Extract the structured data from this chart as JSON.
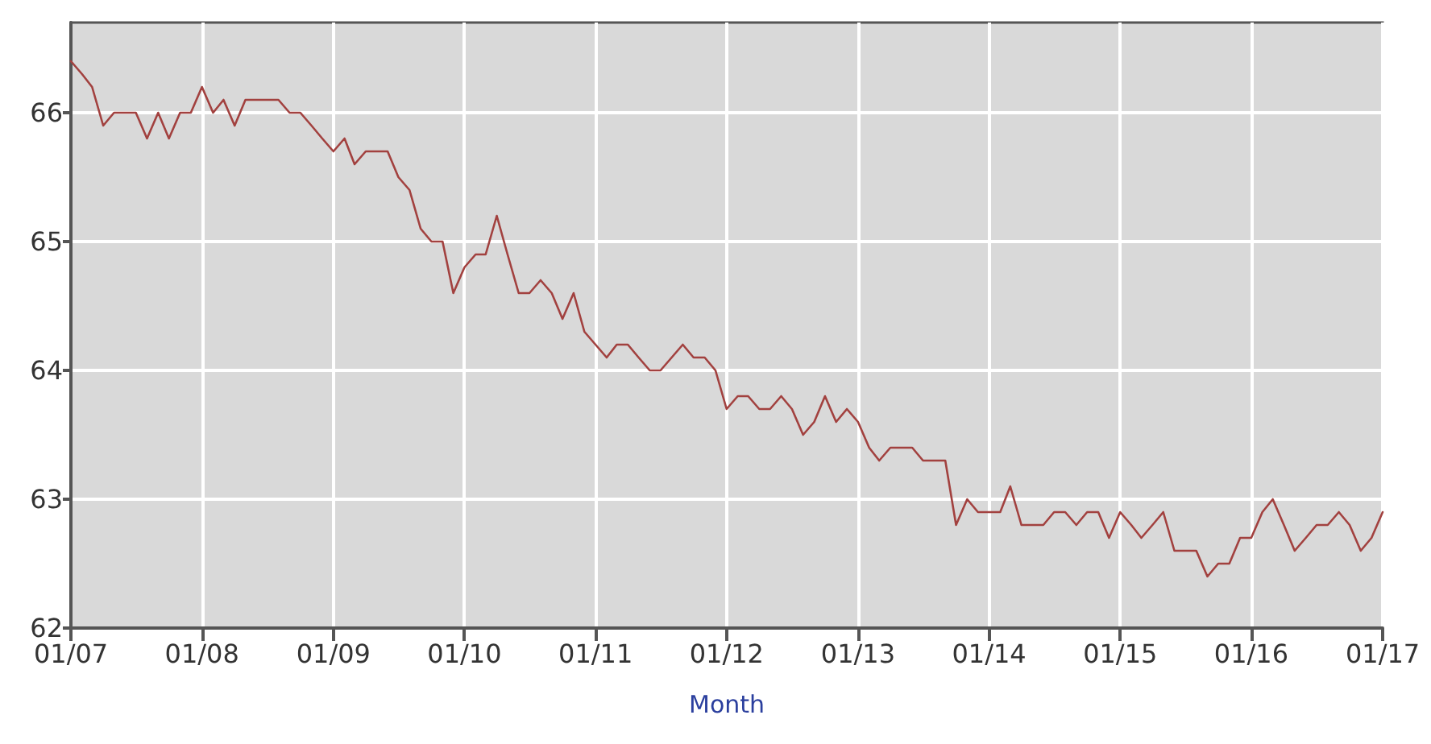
{
  "chart_data": {
    "type": "line",
    "xlabel": "Month",
    "x": [
      "2007-01",
      "2007-02",
      "2007-03",
      "2007-04",
      "2007-05",
      "2007-06",
      "2007-07",
      "2007-08",
      "2007-09",
      "2007-10",
      "2007-11",
      "2007-12",
      "2008-01",
      "2008-02",
      "2008-03",
      "2008-04",
      "2008-05",
      "2008-06",
      "2008-07",
      "2008-08",
      "2008-09",
      "2008-10",
      "2008-11",
      "2008-12",
      "2009-01",
      "2009-02",
      "2009-03",
      "2009-04",
      "2009-05",
      "2009-06",
      "2009-07",
      "2009-08",
      "2009-09",
      "2009-10",
      "2009-11",
      "2009-12",
      "2010-01",
      "2010-02",
      "2010-03",
      "2010-04",
      "2010-05",
      "2010-06",
      "2010-07",
      "2010-08",
      "2010-09",
      "2010-10",
      "2010-11",
      "2010-12",
      "2011-01",
      "2011-02",
      "2011-03",
      "2011-04",
      "2011-05",
      "2011-06",
      "2011-07",
      "2011-08",
      "2011-09",
      "2011-10",
      "2011-11",
      "2011-12",
      "2012-01",
      "2012-02",
      "2012-03",
      "2012-04",
      "2012-05",
      "2012-06",
      "2012-07",
      "2012-08",
      "2012-09",
      "2012-10",
      "2012-11",
      "2012-12",
      "2013-01",
      "2013-02",
      "2013-03",
      "2013-04",
      "2013-05",
      "2013-06",
      "2013-07",
      "2013-08",
      "2013-09",
      "2013-10",
      "2013-11",
      "2013-12",
      "2014-01",
      "2014-02",
      "2014-03",
      "2014-04",
      "2014-05",
      "2014-06",
      "2014-07",
      "2014-08",
      "2014-09",
      "2014-10",
      "2014-11",
      "2014-12",
      "2015-01",
      "2015-02",
      "2015-03",
      "2015-04",
      "2015-05",
      "2015-06",
      "2015-07",
      "2015-08",
      "2015-09",
      "2015-10",
      "2015-11",
      "2015-12",
      "2016-01",
      "2016-02",
      "2016-03",
      "2016-04",
      "2016-05",
      "2016-06",
      "2016-07",
      "2016-08",
      "2016-09",
      "2016-10",
      "2016-11",
      "2016-12",
      "2017-01"
    ],
    "series": [
      {
        "color": "#a2413f",
        "values": [
          66.4,
          66.3,
          66.2,
          65.9,
          66.0,
          66.0,
          66.0,
          65.8,
          66.0,
          65.8,
          66.0,
          66.0,
          66.2,
          66.0,
          66.1,
          65.9,
          66.1,
          66.1,
          66.1,
          66.1,
          66.0,
          66.0,
          65.9,
          65.8,
          65.7,
          65.8,
          65.6,
          65.7,
          65.7,
          65.7,
          65.5,
          65.4,
          65.1,
          65.0,
          65.0,
          64.6,
          64.8,
          64.9,
          64.9,
          65.2,
          64.9,
          64.6,
          64.6,
          64.7,
          64.6,
          64.4,
          64.6,
          64.3,
          64.2,
          64.1,
          64.2,
          64.2,
          64.1,
          64.0,
          64.0,
          64.1,
          64.2,
          64.1,
          64.1,
          64.0,
          63.7,
          63.8,
          63.8,
          63.7,
          63.7,
          63.8,
          63.7,
          63.5,
          63.6,
          63.8,
          63.6,
          63.7,
          63.6,
          63.4,
          63.3,
          63.4,
          63.4,
          63.4,
          63.3,
          63.3,
          63.3,
          62.8,
          63.0,
          62.9,
          62.9,
          62.9,
          63.1,
          62.8,
          62.8,
          62.8,
          62.9,
          62.9,
          62.8,
          62.9,
          62.9,
          62.7,
          62.9,
          62.8,
          62.7,
          62.8,
          62.9,
          62.6,
          62.6,
          62.6,
          62.4,
          62.5,
          62.5,
          62.7,
          62.7,
          62.9,
          63.0,
          62.8,
          62.6,
          62.7,
          62.8,
          62.8,
          62.9,
          62.8,
          62.6,
          62.7,
          62.9
        ]
      }
    ],
    "xlim": [
      "2007-01",
      "2017-01"
    ],
    "xticks": [
      {
        "value": "2007-01",
        "label": "01/07"
      },
      {
        "value": "2008-01",
        "label": "01/08"
      },
      {
        "value": "2009-01",
        "label": "01/09"
      },
      {
        "value": "2010-01",
        "label": "01/10"
      },
      {
        "value": "2011-01",
        "label": "01/11"
      },
      {
        "value": "2012-01",
        "label": "01/12"
      },
      {
        "value": "2013-01",
        "label": "01/13"
      },
      {
        "value": "2014-01",
        "label": "01/14"
      },
      {
        "value": "2015-01",
        "label": "01/15"
      },
      {
        "value": "2016-01",
        "label": "01/16"
      },
      {
        "value": "2017-01",
        "label": "01/17"
      }
    ],
    "ylim": [
      62,
      66.7
    ],
    "yticks": [
      62,
      63,
      64,
      65,
      66
    ],
    "grid": true,
    "marker": "none",
    "line_style": "solid"
  }
}
